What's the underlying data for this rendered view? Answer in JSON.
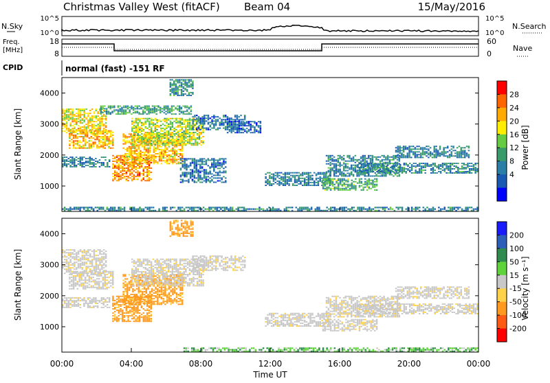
{
  "header": {
    "station": "Christmas Valley West (fitACF)",
    "beam": "Beam 04",
    "date": "15/May/2016"
  },
  "top_panels": {
    "nsky_label": "N.Sky",
    "nsearch_label": "N.Search",
    "freq_label_1": "Freq.",
    "freq_label_2": "[MHz]",
    "nave_label": "Nave",
    "cpid_label": "CPID",
    "cpid_value": "normal (fast) -151 RF",
    "nsky_ticks": [
      "10^5",
      "10^0"
    ],
    "nsearch_ticks": [
      "10^5",
      "10^0"
    ],
    "freq_ticks": [
      "18",
      "8"
    ],
    "nave_ticks": [
      "60",
      "0"
    ]
  },
  "chart_data": [
    {
      "type": "heatmap",
      "name": "power",
      "ylabel": "Slant Range [km]",
      "xlabel": "Time UT",
      "x_ticks": [
        "00:00",
        "04:00",
        "08:00",
        "12:00",
        "16:00",
        "20:00",
        "00:00"
      ],
      "y_ticks": [
        1000,
        2000,
        3000,
        4000
      ],
      "ylim": [
        180,
        4500
      ],
      "xlim_hours": [
        0,
        24
      ],
      "colorbar": {
        "label": "Power [dB]",
        "ticks": [
          "28",
          "24",
          "20",
          "16",
          "12",
          "8",
          "4"
        ],
        "colors": [
          "#ff0000",
          "#ff6600",
          "#ffaa00",
          "#ffee00",
          "#66cc44",
          "#3a9b6a",
          "#2b7fa6",
          "#1a5ab3",
          "#0000ff"
        ]
      },
      "regions": [
        {
          "t0": 0.0,
          "t1": 2.6,
          "r0": 2700,
          "r1": 3500,
          "level": 20
        },
        {
          "t0": 0.4,
          "t1": 3.0,
          "r0": 2200,
          "r1": 2800,
          "level": 22
        },
        {
          "t0": 0.0,
          "t1": 2.8,
          "r0": 1600,
          "r1": 1950,
          "level": 9
        },
        {
          "t0": 2.9,
          "t1": 5.2,
          "r0": 1150,
          "r1": 2000,
          "level": 24
        },
        {
          "t0": 3.5,
          "t1": 7.0,
          "r0": 1700,
          "r1": 2700,
          "level": 22
        },
        {
          "t0": 4.0,
          "t1": 8.2,
          "r0": 2300,
          "r1": 3200,
          "level": 18
        },
        {
          "t0": 2.2,
          "t1": 7.5,
          "r0": 3300,
          "r1": 3600,
          "level": 12
        },
        {
          "t0": 6.2,
          "t1": 7.6,
          "r0": 3900,
          "r1": 4450,
          "level": 10
        },
        {
          "t0": 7.5,
          "t1": 10.6,
          "r0": 2800,
          "r1": 3300,
          "level": 8
        },
        {
          "t0": 9.5,
          "t1": 11.5,
          "r0": 2700,
          "r1": 3100,
          "level": 7
        },
        {
          "t0": 6.8,
          "t1": 9.5,
          "r0": 1100,
          "r1": 1900,
          "level": 8
        },
        {
          "t0": 11.7,
          "t1": 15.5,
          "r0": 1000,
          "r1": 1450,
          "level": 9
        },
        {
          "t0": 15.0,
          "t1": 18.2,
          "r0": 850,
          "r1": 1250,
          "level": 13
        },
        {
          "t0": 15.2,
          "t1": 19.5,
          "r0": 1300,
          "r1": 2000,
          "level": 10
        },
        {
          "t0": 17.0,
          "t1": 24.0,
          "r0": 1400,
          "r1": 1750,
          "level": 10
        },
        {
          "t0": 19.2,
          "t1": 23.5,
          "r0": 1900,
          "r1": 2300,
          "level": 9
        },
        {
          "t0": 0.0,
          "t1": 24.0,
          "r0": 180,
          "r1": 330,
          "level": 10
        }
      ]
    },
    {
      "type": "heatmap",
      "name": "velocity",
      "ylabel": "Slant Range [km]",
      "xlabel": "Time UT",
      "x_ticks": [
        "00:00",
        "04:00",
        "08:00",
        "12:00",
        "16:00",
        "20:00",
        "00:00"
      ],
      "y_ticks": [
        1000,
        2000,
        3000,
        4000
      ],
      "ylim": [
        180,
        4500
      ],
      "xlim_hours": [
        0,
        24
      ],
      "colorbar": {
        "label": "Velocity [m s⁻¹]",
        "ticks": [
          "200",
          "100",
          "50",
          "15",
          "-15",
          "-50",
          "-100",
          "-200"
        ],
        "colors": [
          "#1a1aff",
          "#2e5fb8",
          "#2f8c4e",
          "#5fd33c",
          "#c8c8c8",
          "#ffd24a",
          "#ff9a1f",
          "#ff5a14",
          "#ff0000"
        ]
      },
      "regions": [
        {
          "t0": 0.0,
          "t1": 2.6,
          "r0": 2700,
          "r1": 3500,
          "level": -5
        },
        {
          "t0": 0.4,
          "t1": 3.0,
          "r0": 2200,
          "r1": 2800,
          "level": -5
        },
        {
          "t0": 0.0,
          "t1": 2.8,
          "r0": 1600,
          "r1": 1950,
          "level": -5
        },
        {
          "t0": 2.9,
          "t1": 5.2,
          "r0": 1150,
          "r1": 2000,
          "level": -40
        },
        {
          "t0": 3.5,
          "t1": 7.0,
          "r0": 1700,
          "r1": 2700,
          "level": -40
        },
        {
          "t0": 4.0,
          "t1": 8.2,
          "r0": 2300,
          "r1": 3200,
          "level": -5
        },
        {
          "t0": 6.2,
          "t1": 7.6,
          "r0": 3900,
          "r1": 4450,
          "level": -40
        },
        {
          "t0": 7.5,
          "t1": 10.6,
          "r0": 2800,
          "r1": 3300,
          "level": -5
        },
        {
          "t0": 11.7,
          "t1": 15.5,
          "r0": 1000,
          "r1": 1450,
          "level": -5
        },
        {
          "t0": 15.0,
          "t1": 18.2,
          "r0": 850,
          "r1": 1250,
          "level": -5
        },
        {
          "t0": 15.2,
          "t1": 19.5,
          "r0": 1300,
          "r1": 2000,
          "level": -5
        },
        {
          "t0": 17.0,
          "t1": 24.0,
          "r0": 1400,
          "r1": 1750,
          "level": -5
        },
        {
          "t0": 19.2,
          "t1": 23.5,
          "r0": 1900,
          "r1": 2300,
          "level": -5
        },
        {
          "t0": 7.0,
          "t1": 24.0,
          "r0": 180,
          "r1": 330,
          "level": 25
        }
      ]
    }
  ]
}
